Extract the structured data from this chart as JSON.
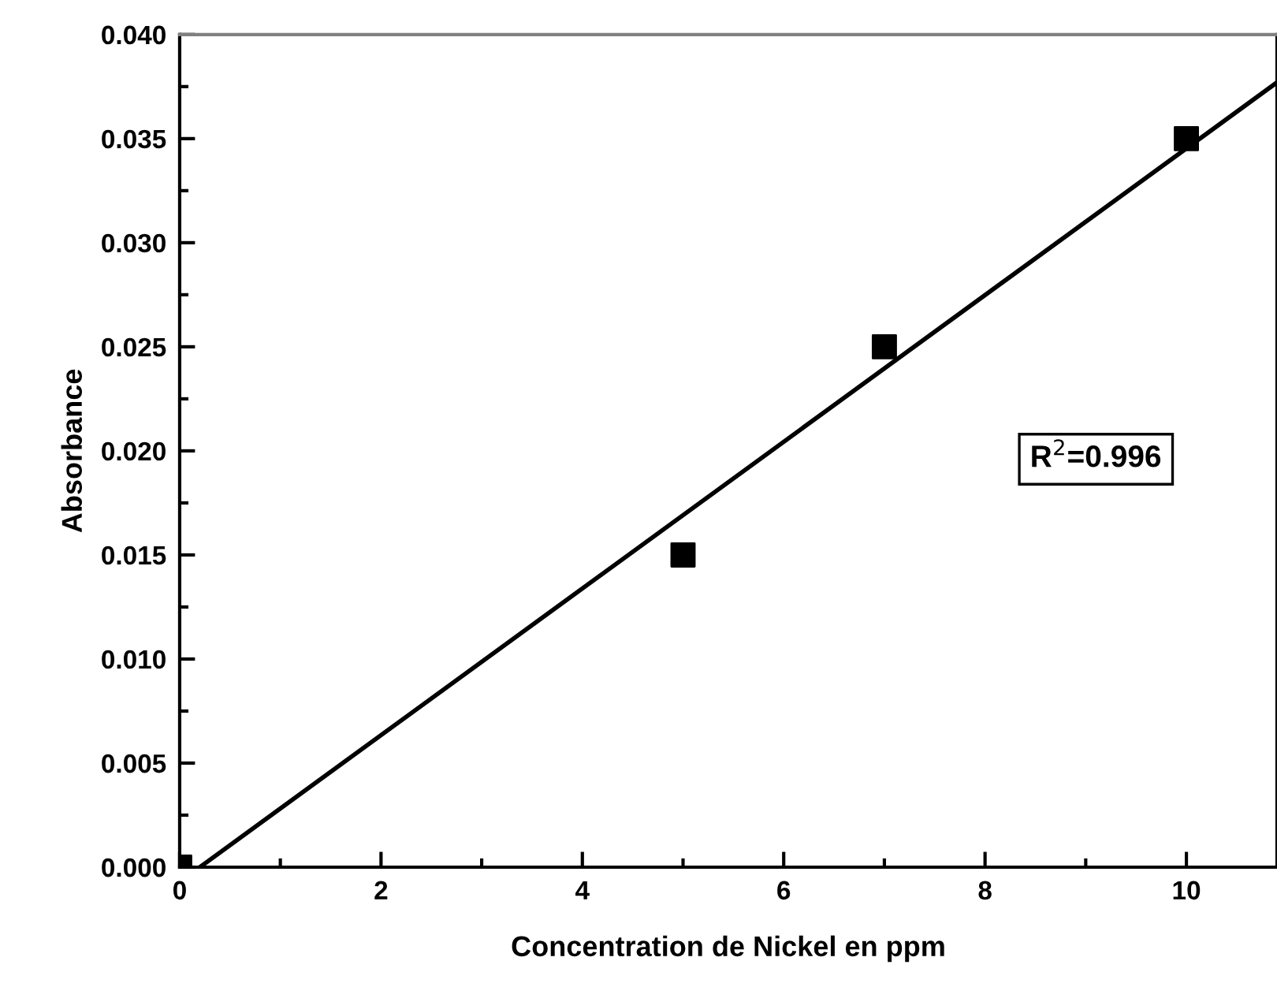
{
  "chart_data": {
    "type": "scatter",
    "xlabel": "Concentration de Nickel en ppm",
    "ylabel": "Absorbance",
    "x": [
      0,
      5,
      7,
      10
    ],
    "series": [
      {
        "color": "#000000",
        "marker": "square",
        "values": [
          0,
          0.015,
          0.025,
          0.035
        ]
      },
      {
        "type": "line",
        "color": "#000000",
        "x": [
          0.2,
          10.9
        ],
        "values": [
          0,
          0.0377
        ]
      }
    ],
    "xlim": [
      0,
      10.9
    ],
    "xticks": [
      0,
      2,
      4,
      6,
      8,
      10
    ],
    "ylim": [
      0,
      0.04
    ],
    "yticks": [
      {
        "value": 0,
        "label": "0.000"
      },
      {
        "value": 0.005,
        "label": "0.005"
      },
      {
        "value": 0.01,
        "label": "0.010"
      },
      {
        "value": 0.015,
        "label": "0.015"
      },
      {
        "value": 0.02,
        "label": "0.020"
      },
      {
        "value": 0.025,
        "label": "0.025"
      },
      {
        "value": 0.03,
        "label": "0.030"
      },
      {
        "value": 0.035,
        "label": "0.035"
      },
      {
        "value": 0.04,
        "label": "0.040"
      }
    ],
    "annotations": [
      "R$^{2}$=0.996"
    ],
    "grid": false,
    "legend": false
  }
}
